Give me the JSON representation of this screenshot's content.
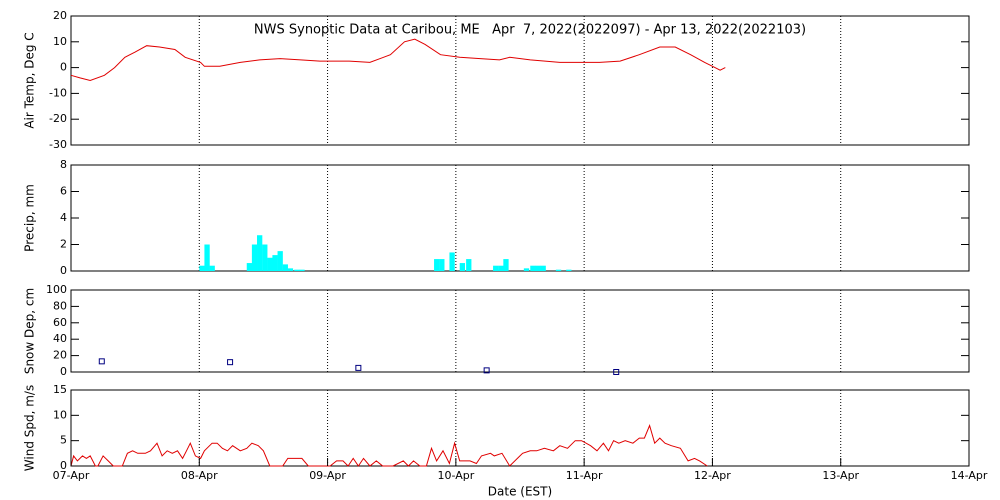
{
  "chart_data": [
    {
      "type": "line",
      "title": "NWS Synoptic Data at Caribou, ME   Apr  7, 2022(2022097) - Apr 13, 2022(2022103)",
      "y_label": "Air Temp, Deg C",
      "color": "#e00000",
      "ylim": [
        -30,
        20
      ],
      "yticks": [
        -30,
        -20,
        -10,
        0,
        10,
        20
      ],
      "x": [
        0,
        0.07,
        0.15,
        0.26,
        0.34,
        0.42,
        0.5,
        0.59,
        0.69,
        0.81,
        0.89,
        1.01,
        1.04,
        1.16,
        1.32,
        1.47,
        1.63,
        1.79,
        1.94,
        2.17,
        2.33,
        2.49,
        2.6,
        2.68,
        2.76,
        2.88,
        3.03,
        3.19,
        3.34,
        3.42,
        3.58,
        3.81,
        4.12,
        4.28,
        4.43,
        4.59,
        4.71,
        4.83,
        4.94,
        5.02,
        5.06,
        5.1
      ],
      "values": [
        -3,
        -4,
        -5,
        -3,
        0,
        4,
        6,
        8.5,
        8,
        7,
        4,
        2,
        0.5,
        0.5,
        2,
        3,
        3.5,
        3,
        2.5,
        2.5,
        2,
        5,
        10,
        11,
        9,
        5,
        4,
        3.5,
        3,
        4,
        3,
        2,
        2,
        2.5,
        5,
        8,
        8,
        5,
        2,
        0,
        -1,
        0
      ]
    },
    {
      "type": "bar",
      "y_label": "Precip, mm",
      "color": "#00ffff",
      "ylim": [
        0,
        8
      ],
      "yticks": [
        0,
        2,
        4,
        6,
        8
      ],
      "x": [
        1.0,
        1.04,
        1.08,
        1.37,
        1.41,
        1.45,
        1.49,
        1.53,
        1.57,
        1.61,
        1.65,
        1.69,
        1.74,
        1.78,
        2.83,
        2.87,
        2.95,
        3.03,
        3.08,
        3.29,
        3.33,
        3.37,
        3.53,
        3.58,
        3.62,
        3.66,
        3.78,
        3.86
      ],
      "values": [
        0.4,
        2,
        0.4,
        0.6,
        2,
        2.7,
        2,
        1,
        1.2,
        1.5,
        0.5,
        0.2,
        0.1,
        0.1,
        0.9,
        0.9,
        1.4,
        0.6,
        0.9,
        0.4,
        0.4,
        0.9,
        0.2,
        0.4,
        0.4,
        0.4,
        0.1,
        0.1
      ]
    },
    {
      "type": "scatter",
      "y_label": "Snow Dep, cm",
      "color": "#000080",
      "ylim": [
        0,
        100
      ],
      "yticks": [
        0,
        20,
        40,
        60,
        80,
        100
      ],
      "x": [
        0.24,
        1.24,
        2.24,
        3.24,
        4.25
      ],
      "values": [
        13,
        12,
        5,
        2,
        0
      ]
    },
    {
      "type": "line",
      "y_label": "Wind Spd, m/s",
      "x_label": "Date (EST)",
      "color": "#e00000",
      "ylim": [
        0,
        15
      ],
      "yticks": [
        0,
        5,
        10,
        15
      ],
      "xlim": [
        0,
        7
      ],
      "xticks": [
        {
          "value": 0,
          "label": "07-Apr"
        },
        {
          "value": 1,
          "label": "08-Apr"
        },
        {
          "value": 2,
          "label": "09-Apr"
        },
        {
          "value": 3,
          "label": "10-Apr"
        },
        {
          "value": 4,
          "label": "11-Apr"
        },
        {
          "value": 5,
          "label": "12-Apr"
        },
        {
          "value": 6,
          "label": "13-Apr"
        },
        {
          "value": 7,
          "label": "14-Apr"
        }
      ],
      "x": [
        0,
        0.02,
        0.05,
        0.09,
        0.12,
        0.15,
        0.19,
        0.21,
        0.25,
        0.29,
        0.33,
        0.4,
        0.44,
        0.48,
        0.52,
        0.58,
        0.62,
        0.67,
        0.71,
        0.75,
        0.79,
        0.83,
        0.87,
        0.9,
        0.93,
        0.97,
        1.01,
        1.04,
        1.1,
        1.14,
        1.18,
        1.22,
        1.26,
        1.32,
        1.37,
        1.41,
        1.46,
        1.5,
        1.55,
        1.59,
        1.65,
        1.69,
        1.75,
        1.8,
        1.85,
        1.93,
        1.97,
        2.02,
        2.07,
        2.12,
        2.16,
        2.2,
        2.24,
        2.28,
        2.33,
        2.38,
        2.43,
        2.51,
        2.59,
        2.63,
        2.67,
        2.72,
        2.77,
        2.81,
        2.85,
        2.9,
        2.95,
        2.99,
        3.03,
        3.07,
        3.11,
        3.16,
        3.2,
        3.27,
        3.3,
        3.36,
        3.42,
        3.48,
        3.52,
        3.58,
        3.63,
        3.69,
        3.76,
        3.81,
        3.87,
        3.93,
        3.98,
        4.05,
        4.1,
        4.15,
        4.19,
        4.23,
        4.27,
        4.32,
        4.38,
        4.43,
        4.47,
        4.51,
        4.55,
        4.59,
        4.63,
        4.68,
        4.75,
        4.81,
        4.86,
        4.9,
        4.96
      ],
      "values": [
        0,
        2,
        1,
        2,
        1.5,
        2,
        0,
        0,
        2,
        1,
        0,
        0,
        2.5,
        3,
        2.5,
        2.5,
        3,
        4.5,
        2,
        3,
        2.5,
        3,
        1.5,
        3,
        4.5,
        2,
        1.5,
        3,
        4.5,
        4.5,
        3.5,
        3,
        4,
        3,
        3.5,
        4.5,
        4,
        3,
        0,
        0,
        0,
        1.5,
        1.5,
        1.5,
        0,
        0,
        0,
        0,
        1,
        1,
        0,
        1.5,
        0,
        1.5,
        0,
        1,
        0,
        0,
        1,
        0,
        1,
        0,
        0,
        3.5,
        1,
        3,
        0.5,
        4.5,
        1,
        1,
        1,
        0.5,
        2,
        2.5,
        2,
        2.5,
        0,
        1.5,
        2.5,
        3,
        3,
        3.5,
        3,
        4,
        3.5,
        5,
        5,
        4,
        3,
        4.5,
        3,
        5,
        4.5,
        5,
        4.5,
        5.5,
        5.5,
        8,
        4.5,
        5.5,
        4.5,
        4,
        3.5,
        1,
        1.5,
        1,
        0
      ]
    }
  ]
}
